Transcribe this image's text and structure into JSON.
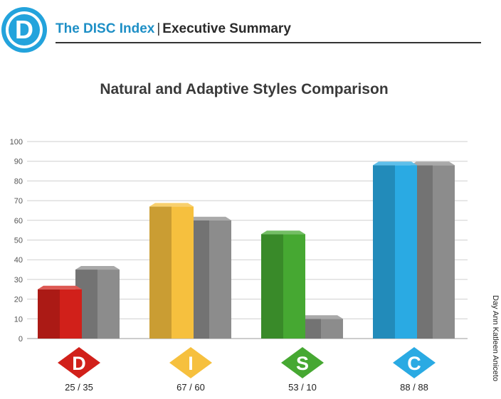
{
  "header": {
    "logo_letter": "D",
    "title_index": "The DISC Index",
    "separator": "|",
    "title_summary": "Executive Summary"
  },
  "credit": "Day Ann Katleen Aniceto",
  "chart_data": {
    "type": "bar",
    "title": "Natural and Adaptive Styles Comparison",
    "categories": [
      "D",
      "I",
      "S",
      "C"
    ],
    "series": [
      {
        "values": [
          25,
          67,
          53,
          88
        ]
      },
      {
        "values": [
          35,
          60,
          10,
          88
        ]
      }
    ],
    "ylim": [
      0,
      100
    ],
    "yticks": [
      0,
      10,
      20,
      30,
      40,
      50,
      60,
      70,
      80,
      90,
      100
    ],
    "grid": true,
    "labels": [
      "25 / 35",
      "67 / 60",
      "53 / 10",
      "88 / 88"
    ],
    "colors": {
      "D": "#d1201a",
      "I": "#f6c03e",
      "S": "#46a832",
      "C": "#2aaae3",
      "adaptive": "#8c8c8c"
    }
  }
}
